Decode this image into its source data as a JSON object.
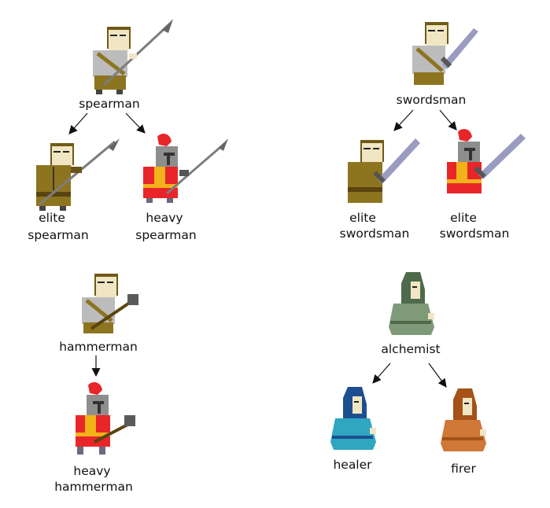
{
  "trees": [
    {
      "root": {
        "label": "spearman",
        "figure": "soldier-spear"
      },
      "children": [
        {
          "label_lines": [
            "elite",
            "spearman"
          ],
          "figure": "elite-soldier-spear"
        },
        {
          "label_lines": [
            "heavy",
            "spearman"
          ],
          "figure": "knight-spear"
        }
      ]
    },
    {
      "root": {
        "label": "swordsman",
        "figure": "soldier-sword"
      },
      "children": [
        {
          "label_lines": [
            "elite",
            "swordsman"
          ],
          "figure": "elite-soldier-sword"
        },
        {
          "label_lines": [
            "elite",
            "swordsman"
          ],
          "figure": "knight-sword"
        }
      ]
    },
    {
      "root": {
        "label": "hammerman",
        "figure": "soldier-hammer"
      },
      "children": [
        {
          "label_lines": [
            "heavy",
            "hammerman"
          ],
          "figure": "knight-hammer"
        }
      ]
    },
    {
      "root": {
        "label": "alchemist",
        "figure": "green-robed-figure"
      },
      "children": [
        {
          "label_lines": [
            "healer"
          ],
          "figure": "blue-robed-figure"
        },
        {
          "label_lines": [
            "firer"
          ],
          "figure": "orange-robed-figure"
        }
      ]
    }
  ],
  "colors": {
    "skin": "#f1e6c4",
    "hair": "#6f5a16",
    "tunic_gray": "#bcbcbc",
    "tunic_olive": "#8d7520",
    "belt": "#6a5418",
    "knight_red": "#e8262a",
    "helmet": "#8e8e8e",
    "trim_gold": "#f2b21a",
    "spear_gray": "#7d7d7d",
    "sword_blade": "#9a9bc0",
    "hammer_head": "#5a5a5a",
    "handle_brown": "#5a4410",
    "robe_green": "#7e9a78",
    "robe_blue": "#2fa7c0",
    "robe_orange": "#d07838"
  }
}
